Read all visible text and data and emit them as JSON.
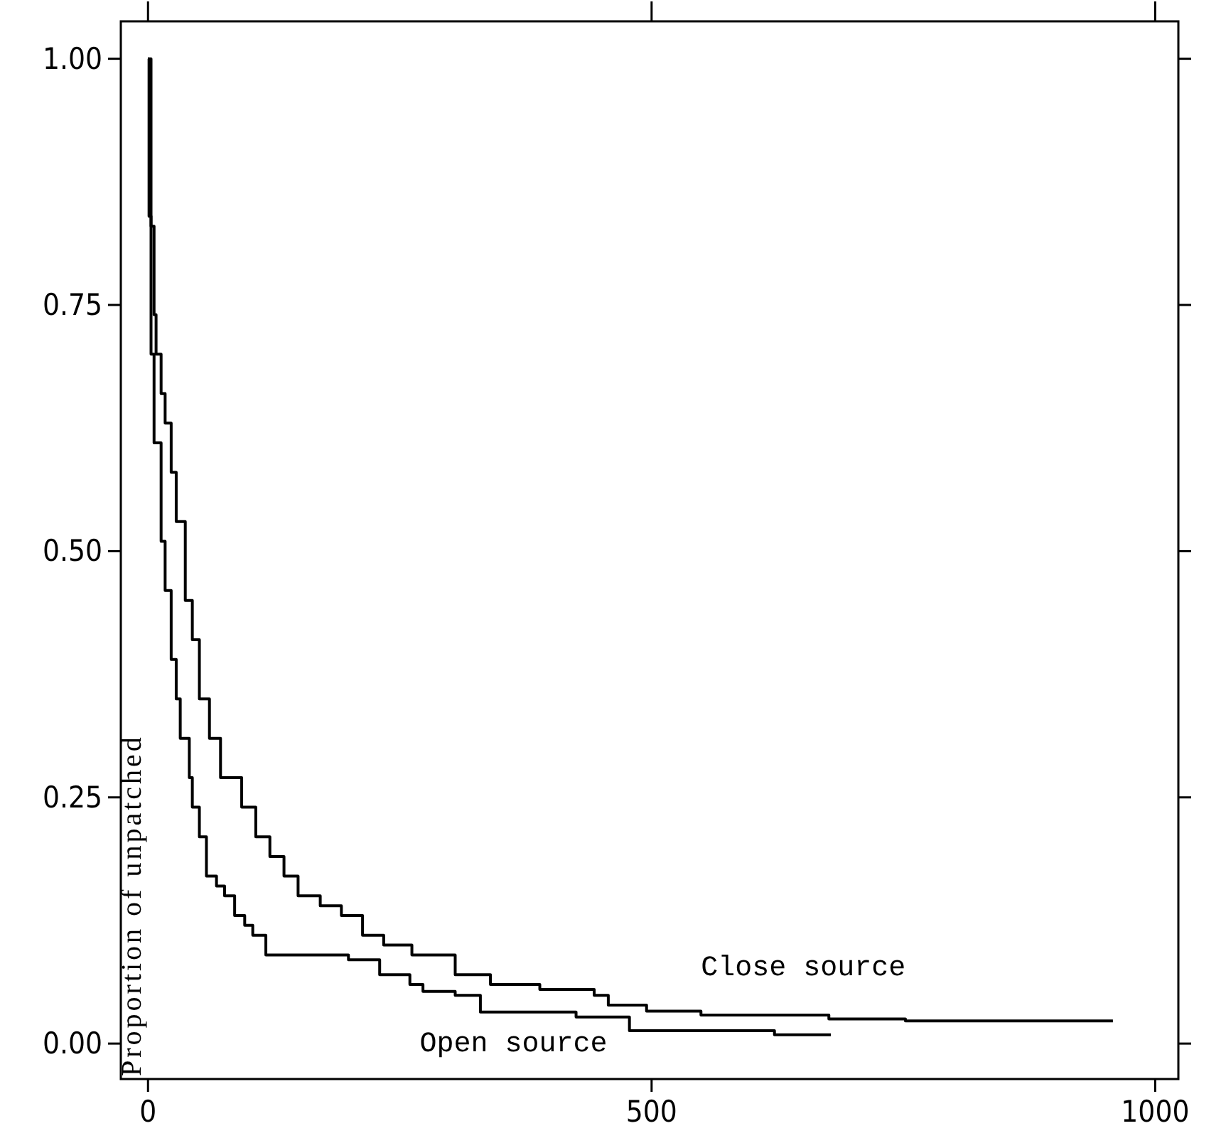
{
  "chart_data": {
    "type": "step",
    "ylabel": "Proportion of unpatched",
    "xlim": [
      -27,
      1023
    ],
    "ylim": [
      -0.036,
      1.038
    ],
    "xticks": [
      0,
      500,
      1000
    ],
    "yticks": [
      {
        "value": 0,
        "label": "0.00"
      },
      {
        "value": 0.25,
        "label": "0.25"
      },
      {
        "value": 0.5,
        "label": "0.50"
      },
      {
        "value": 0.75,
        "label": "0.75"
      },
      {
        "value": 1,
        "label": "1.00"
      }
    ],
    "grid": false,
    "marker": "none",
    "line_style": "solid",
    "series": [
      {
        "name": "Close source",
        "color": "#000000",
        "x": [
          0,
          3,
          6,
          8,
          13,
          17,
          23,
          28,
          37,
          44,
          51,
          61,
          72,
          93,
          107,
          121,
          135,
          149,
          171,
          192,
          213,
          234,
          262,
          305,
          340,
          389,
          443,
          457,
          495,
          549,
          676,
          752,
          958
        ],
        "values": [
          1.0,
          0.83,
          0.74,
          0.7,
          0.66,
          0.63,
          0.58,
          0.53,
          0.45,
          0.41,
          0.35,
          0.31,
          0.27,
          0.24,
          0.21,
          0.19,
          0.17,
          0.15,
          0.14,
          0.13,
          0.11,
          0.1,
          0.09,
          0.07,
          0.06,
          0.055,
          0.049,
          0.039,
          0.033,
          0.029,
          0.025,
          0.023,
          0.023
        ]
      },
      {
        "name": "Open source",
        "color": "#000000",
        "x": [
          0,
          1,
          3,
          6,
          13,
          17,
          23,
          28,
          32,
          41,
          44,
          51,
          58,
          68,
          76,
          86,
          96,
          104,
          117,
          199,
          230,
          260,
          273,
          305,
          330,
          425,
          478,
          622,
          678
        ],
        "values": [
          1.0,
          0.84,
          0.7,
          0.61,
          0.51,
          0.46,
          0.39,
          0.35,
          0.31,
          0.27,
          0.24,
          0.21,
          0.17,
          0.16,
          0.15,
          0.13,
          0.12,
          0.11,
          0.09,
          0.085,
          0.07,
          0.06,
          0.053,
          0.049,
          0.032,
          0.027,
          0.013,
          0.009,
          0.009
        ]
      }
    ]
  }
}
